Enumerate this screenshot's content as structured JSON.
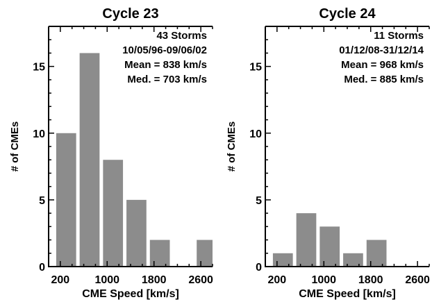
{
  "chart_data": [
    {
      "type": "bar",
      "title": "Cycle 23",
      "xlabel": "CME Speed [km/s]",
      "ylabel": "# of CMEs",
      "xlim": [
        0,
        2800
      ],
      "ylim": [
        0,
        18
      ],
      "xticks": [
        200,
        1000,
        1800,
        2600
      ],
      "yticks": [
        0,
        5,
        10,
        15
      ],
      "bins": [
        {
          "x0": 100,
          "x1": 500,
          "value": 10
        },
        {
          "x0": 500,
          "x1": 900,
          "value": 16
        },
        {
          "x0": 900,
          "x1": 1300,
          "value": 8
        },
        {
          "x0": 1300,
          "x1": 1700,
          "value": 5
        },
        {
          "x0": 1700,
          "x1": 2100,
          "value": 2
        },
        {
          "x0": 2500,
          "x1": 2900,
          "value": 2
        }
      ],
      "annotations": [
        "43 Storms",
        "10/05/96-09/06/02",
        "Mean = 838 km/s",
        "Med. = 703 km/s"
      ],
      "bar_color": "#8c8c8c"
    },
    {
      "type": "bar",
      "title": "Cycle 24",
      "xlabel": "CME Speed [km/s]",
      "ylabel": "# of CMEs",
      "xlim": [
        0,
        2800
      ],
      "ylim": [
        0,
        18
      ],
      "xticks": [
        200,
        1000,
        1800,
        2600
      ],
      "yticks": [
        0,
        5,
        10,
        15
      ],
      "bins": [
        {
          "x0": 100,
          "x1": 500,
          "value": 1
        },
        {
          "x0": 500,
          "x1": 900,
          "value": 4
        },
        {
          "x0": 900,
          "x1": 1300,
          "value": 3
        },
        {
          "x0": 1300,
          "x1": 1700,
          "value": 1
        },
        {
          "x0": 1700,
          "x1": 2100,
          "value": 2
        }
      ],
      "annotations": [
        "11 Storms",
        "01/12/08-31/12/14",
        "Mean = 968 km/s",
        "Med. = 885 km/s"
      ],
      "bar_color": "#8c8c8c"
    }
  ]
}
